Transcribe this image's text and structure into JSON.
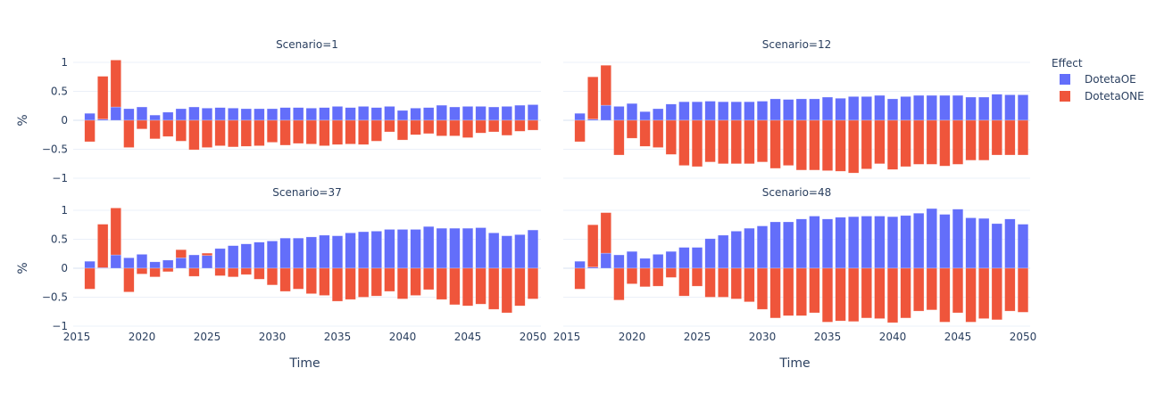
{
  "chart_data": {
    "type": "bar",
    "barmode": "relative",
    "facet_layout": "2x2",
    "x": [
      2016,
      2017,
      2018,
      2019,
      2020,
      2021,
      2022,
      2023,
      2024,
      2025,
      2026,
      2027,
      2028,
      2029,
      2030,
      2031,
      2032,
      2033,
      2034,
      2035,
      2036,
      2037,
      2038,
      2039,
      2040,
      2041,
      2042,
      2043,
      2044,
      2045,
      2046,
      2047,
      2048,
      2049,
      2050
    ],
    "xlabel": "Time",
    "ylabel": "%",
    "xlim": [
      2015,
      2050
    ],
    "ylim": [
      -1,
      1
    ],
    "x_ticks": [
      "2015",
      "2020",
      "2025",
      "2030",
      "2035",
      "2040",
      "2045",
      "2050"
    ],
    "y_ticks": [
      "1",
      "0.5",
      "0",
      "−0.5",
      "−1"
    ],
    "y_tick_values": [
      1,
      0.5,
      0,
      -0.5,
      -1
    ],
    "x_tick_values": [
      2015,
      2020,
      2025,
      2030,
      2035,
      2040,
      2045,
      2050
    ],
    "grid": true,
    "legend": {
      "title": "Effect",
      "placement": "right",
      "entries": [
        {
          "name": "DotetaOE",
          "color": "#636efa"
        },
        {
          "name": "DotetaONE",
          "color": "#ef553b"
        }
      ]
    },
    "panels": [
      {
        "title": "Scenario=1",
        "series": [
          {
            "name": "DotetaOE",
            "values": [
              0.12,
              0.02,
              0.23,
              0.2,
              0.23,
              0.09,
              0.14,
              0.2,
              0.23,
              0.21,
              0.22,
              0.21,
              0.2,
              0.2,
              0.2,
              0.22,
              0.22,
              0.21,
              0.22,
              0.24,
              0.22,
              0.24,
              0.22,
              0.24,
              0.17,
              0.21,
              0.22,
              0.26,
              0.23,
              0.24,
              0.24,
              0.23,
              0.24,
              0.26,
              0.27
            ]
          },
          {
            "name": "DotetaONE",
            "values": [
              -0.37,
              0.74,
              0.81,
              -0.47,
              -0.15,
              -0.32,
              -0.28,
              -0.36,
              -0.51,
              -0.47,
              -0.44,
              -0.46,
              -0.45,
              -0.44,
              -0.38,
              -0.43,
              -0.4,
              -0.41,
              -0.44,
              -0.42,
              -0.41,
              -0.42,
              -0.36,
              -0.2,
              -0.34,
              -0.25,
              -0.23,
              -0.27,
              -0.27,
              -0.3,
              -0.22,
              -0.2,
              -0.26,
              -0.19,
              -0.17
            ]
          }
        ]
      },
      {
        "title": "Scenario=12",
        "series": [
          {
            "name": "DotetaOE",
            "values": [
              0.12,
              0.02,
              0.26,
              0.24,
              0.29,
              0.15,
              0.2,
              0.28,
              0.32,
              0.32,
              0.33,
              0.32,
              0.32,
              0.32,
              0.33,
              0.37,
              0.36,
              0.37,
              0.37,
              0.4,
              0.38,
              0.41,
              0.41,
              0.43,
              0.37,
              0.41,
              0.43,
              0.43,
              0.43,
              0.43,
              0.4,
              0.4,
              0.45,
              0.44,
              0.44
            ]
          },
          {
            "name": "DotetaONE",
            "values": [
              -0.37,
              0.73,
              0.69,
              -0.6,
              -0.31,
              -0.45,
              -0.47,
              -0.59,
              -0.78,
              -0.8,
              -0.72,
              -0.75,
              -0.75,
              -0.75,
              -0.72,
              -0.83,
              -0.78,
              -0.86,
              -0.86,
              -0.87,
              -0.88,
              -0.91,
              -0.84,
              -0.75,
              -0.85,
              -0.8,
              -0.76,
              -0.76,
              -0.79,
              -0.76,
              -0.69,
              -0.69,
              -0.6,
              -0.6,
              -0.6
            ]
          }
        ]
      },
      {
        "title": "Scenario=37",
        "series": [
          {
            "name": "DotetaOE",
            "values": [
              0.12,
              0.01,
              0.23,
              0.18,
              0.24,
              0.11,
              0.14,
              0.18,
              0.23,
              0.22,
              0.34,
              0.39,
              0.42,
              0.45,
              0.47,
              0.52,
              0.52,
              0.54,
              0.57,
              0.56,
              0.61,
              0.63,
              0.64,
              0.67,
              0.67,
              0.67,
              0.72,
              0.69,
              0.69,
              0.69,
              0.7,
              0.61,
              0.56,
              0.58,
              0.66
            ]
          },
          {
            "name": "DotetaONE",
            "values": [
              -0.36,
              0.75,
              0.81,
              -0.41,
              -0.1,
              -0.15,
              -0.06,
              0.14,
              -0.14,
              0.04,
              -0.13,
              -0.15,
              -0.11,
              -0.19,
              -0.29,
              -0.4,
              -0.36,
              -0.44,
              -0.47,
              -0.57,
              -0.54,
              -0.5,
              -0.48,
              -0.4,
              -0.53,
              -0.47,
              -0.37,
              -0.54,
              -0.63,
              -0.65,
              -0.62,
              -0.71,
              -0.77,
              -0.65,
              -0.53
            ]
          }
        ]
      },
      {
        "title": "Scenario=48",
        "series": [
          {
            "name": "DotetaOE",
            "values": [
              0.12,
              0.02,
              0.26,
              0.23,
              0.29,
              0.17,
              0.24,
              0.29,
              0.36,
              0.36,
              0.51,
              0.57,
              0.64,
              0.69,
              0.73,
              0.8,
              0.8,
              0.85,
              0.9,
              0.85,
              0.88,
              0.89,
              0.9,
              0.9,
              0.89,
              0.91,
              0.95,
              1.03,
              0.93,
              1.02,
              0.87,
              0.86,
              0.77,
              0.85,
              0.76
            ]
          },
          {
            "name": "DotetaONE",
            "values": [
              -0.36,
              0.73,
              0.7,
              -0.55,
              -0.27,
              -0.32,
              -0.31,
              -0.16,
              -0.48,
              -0.31,
              -0.5,
              -0.5,
              -0.53,
              -0.58,
              -0.71,
              -0.86,
              -0.82,
              -0.82,
              -0.77,
              -0.93,
              -0.91,
              -0.92,
              -0.86,
              -0.87,
              -0.94,
              -0.86,
              -0.74,
              -0.72,
              -0.93,
              -0.77,
              -0.93,
              -0.87,
              -0.89,
              -0.74,
              -0.76
            ]
          }
        ]
      }
    ]
  }
}
